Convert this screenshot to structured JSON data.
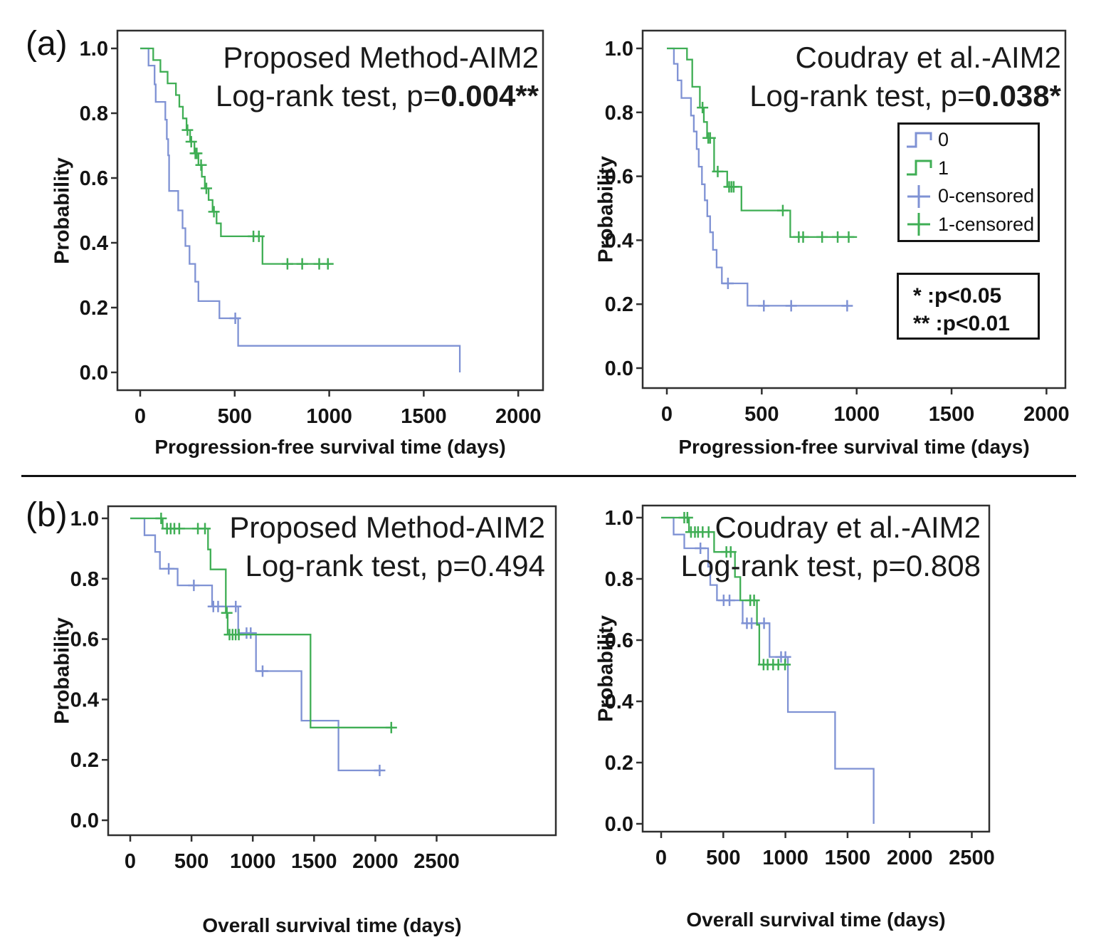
{
  "figure": {
    "panel_a_label": "(a)",
    "panel_b_label": "(b)",
    "colors": {
      "group0": "#7f92d4",
      "group1": "#3fae54",
      "axis": "#2f2f2f",
      "text": "#141414"
    },
    "legend": {
      "position": "top-right-panel",
      "items": [
        {
          "label": "0",
          "glyph": "step",
          "color_key": "group0"
        },
        {
          "label": "1",
          "glyph": "step",
          "color_key": "group1"
        },
        {
          "label": "0-censored",
          "glyph": "plus",
          "color_key": "group0"
        },
        {
          "label": "1-censored",
          "glyph": "plus",
          "color_key": "group1"
        }
      ]
    },
    "significance_box": {
      "line1": "* :p<0.05",
      "line2": "** :p<0.01"
    }
  },
  "chart_data": {
    "type": "line",
    "subtype": "kaplan-meier-step",
    "grid": false,
    "panels": [
      {
        "id": "pfs-proposed",
        "title": "Proposed Method-AIM2",
        "logrank_prefix": "Log-rank test, p=",
        "logrank_value": "0.004**",
        "logrank_value_bold": "true",
        "xlabel": "Progression-free survival time (days)",
        "ylabel": "Probability",
        "xlim": [
          0,
          2130
        ],
        "ylim": [
          0.0,
          1.0
        ],
        "x_ticks": [
          0,
          500,
          1000,
          1500,
          2000
        ],
        "y_ticks": [
          1.0,
          0.8,
          0.6,
          0.4,
          0.2,
          0.0
        ],
        "series": [
          {
            "name": "0",
            "color_key": "group0",
            "start": 0,
            "end": 1691,
            "drops": [
              [
                44,
                0.947
              ],
              [
                76,
                0.889
              ],
              [
                82,
                0.835
              ],
              [
                133,
                0.78
              ],
              [
                141,
                0.72
              ],
              [
                148,
                0.67
              ],
              [
                153,
                0.56
              ],
              [
                201,
                0.5
              ],
              [
                224,
                0.445
              ],
              [
                239,
                0.39
              ],
              [
                261,
                0.335
              ],
              [
                291,
                0.28
              ],
              [
                308,
                0.22
              ],
              [
                419,
                0.167
              ],
              [
                518,
                0.082
              ],
              [
                1691,
                0.0
              ]
            ],
            "censors": [
              503
            ]
          },
          {
            "name": "1",
            "color_key": "group1",
            "start": 0,
            "end": 1005,
            "drops": [
              [
                69,
                0.964
              ],
              [
                107,
                0.928
              ],
              [
                145,
                0.892
              ],
              [
                189,
                0.856
              ],
              [
                207,
                0.82
              ],
              [
                226,
                0.784
              ],
              [
                245,
                0.748
              ],
              [
                264,
                0.712
              ],
              [
                287,
                0.676
              ],
              [
                308,
                0.64
              ],
              [
                326,
                0.604
              ],
              [
                342,
                0.568
              ],
              [
                362,
                0.532
              ],
              [
                383,
                0.496
              ],
              [
                404,
                0.46
              ],
              [
                427,
                0.42
              ],
              [
                647,
                0.335
              ]
            ],
            "censors": [
              250,
              270,
              292,
              299,
              322,
              350,
              390,
              599,
              628,
              779,
              857,
              947,
              993
            ]
          }
        ]
      },
      {
        "id": "pfs-coudray",
        "title": "Coudray et al.-AIM2",
        "logrank_prefix": "Log-rank test, p=",
        "logrank_value": "0.038*",
        "logrank_value_bold": "true",
        "xlabel": "Progression-free survival time (days)",
        "ylabel": "Probability",
        "xlim": [
          0,
          2100
        ],
        "ylim": [
          0.0,
          1.0
        ],
        "x_ticks": [
          0,
          500,
          1000,
          1500,
          2000
        ],
        "y_ticks": [
          1.0,
          0.8,
          0.6,
          0.4,
          0.2,
          0.0
        ],
        "series": [
          {
            "name": "0",
            "color_key": "group0",
            "start": 0,
            "end": 955,
            "drops": [
              [
                37,
                0.952
              ],
              [
                57,
                0.9
              ],
              [
                77,
                0.845
              ],
              [
                127,
                0.79
              ],
              [
                142,
                0.74
              ],
              [
                157,
                0.685
              ],
              [
                168,
                0.63
              ],
              [
                185,
                0.575
              ],
              [
                200,
                0.525
              ],
              [
                213,
                0.475
              ],
              [
                228,
                0.425
              ],
              [
                243,
                0.37
              ],
              [
                262,
                0.315
              ],
              [
                290,
                0.265
              ],
              [
                425,
                0.195
              ]
            ],
            "censors": [
              322,
              511,
              655,
              950
            ]
          },
          {
            "name": "1",
            "color_key": "group1",
            "start": 0,
            "end": 1002,
            "drops": [
              [
                106,
                0.965
              ],
              [
                134,
                0.88
              ],
              [
                174,
                0.815
              ],
              [
                195,
                0.77
              ],
              [
                212,
                0.72
              ],
              [
                249,
                0.615
              ],
              [
                318,
                0.567
              ],
              [
                393,
                0.493
              ],
              [
                650,
                0.41
              ]
            ],
            "censors": [
              188,
              218,
              228,
              268,
              328,
              340,
              352,
              611,
              695,
              718,
              818,
              900,
              958
            ]
          }
        ]
      },
      {
        "id": "os-proposed",
        "title": "Proposed Method-AIM2",
        "logrank_prefix": "Log-rank test, p=",
        "logrank_value": "0.494",
        "logrank_value_bold": "false",
        "xlabel": "Overall survival time (days)",
        "ylabel": "Probability",
        "xlim": [
          0,
          2600
        ],
        "ylim": [
          0.0,
          1.0
        ],
        "x_ticks": [
          0,
          500,
          1000,
          1500,
          2000,
          2500
        ],
        "y_ticks": [
          1.0,
          0.8,
          0.6,
          0.4,
          0.2,
          0.0
        ],
        "series": [
          {
            "name": "0",
            "color_key": "group0",
            "start": 0,
            "end": 2048,
            "drops": [
              [
                116,
                0.944
              ],
              [
                203,
                0.889
              ],
              [
                242,
                0.833
              ],
              [
                387,
                0.778
              ],
              [
                668,
                0.708
              ],
              [
                881,
                0.62
              ],
              [
                1026,
                0.494
              ],
              [
                1397,
                0.33
              ],
              [
                1699,
                0.165
              ]
            ],
            "censors": [
              314,
              519,
              678,
              717,
              861,
              949,
              983,
              1080,
              2035
            ]
          },
          {
            "name": "1",
            "color_key": "group1",
            "start": 0,
            "end": 2139,
            "drops": [
              [
                265,
                0.966
              ],
              [
                635,
                0.897
              ],
              [
                655,
                0.831
              ],
              [
                780,
                0.687
              ],
              [
                795,
                0.615
              ],
              [
                1471,
                0.307
              ]
            ],
            "censors": [
              252,
              300,
              330,
              360,
              400,
              552,
              610,
              788,
              810,
              835,
              860,
              886,
              2130
            ]
          }
        ]
      },
      {
        "id": "os-coudray",
        "title": "Coudray et al.-AIM2",
        "logrank_prefix": "Log-rank test, p=",
        "logrank_value": "0.808",
        "logrank_value_bold": "false",
        "xlabel": "Overall survival time (days)",
        "ylabel": "Probability",
        "xlim": [
          0,
          2640
        ],
        "ylim": [
          0.0,
          1.0
        ],
        "x_ticks": [
          0,
          500,
          1000,
          1500,
          2000,
          2500
        ],
        "y_ticks": [
          1.0,
          0.8,
          0.6,
          0.4,
          0.2,
          0.0
        ],
        "series": [
          {
            "name": "0",
            "color_key": "group0",
            "start": 0,
            "end": 1710,
            "drops": [
              [
                100,
                0.945
              ],
              [
                186,
                0.9
              ],
              [
                378,
                0.84
              ],
              [
                395,
                0.78
              ],
              [
                449,
                0.73
              ],
              [
                656,
                0.655
              ],
              [
                872,
                0.545
              ],
              [
                1020,
                0.365
              ],
              [
                1400,
                0.18
              ],
              [
                1710,
                0.0
              ]
            ],
            "censors": [
              316,
              503,
              550,
              690,
              728,
              828,
              965,
              1000
            ]
          },
          {
            "name": "1",
            "color_key": "group1",
            "start": 0,
            "end": 1016,
            "drops": [
              [
                224,
                0.953
              ],
              [
                426,
                0.888
              ],
              [
                594,
                0.806
              ],
              [
                637,
                0.73
              ],
              [
                771,
                0.65
              ],
              [
                790,
                0.52
              ]
            ],
            "censors": [
              186,
              211,
              240,
              272,
              297,
              334,
              382,
              525,
              560,
              717,
              748,
              824,
              857,
              901,
              943,
              997
            ]
          }
        ]
      }
    ]
  }
}
